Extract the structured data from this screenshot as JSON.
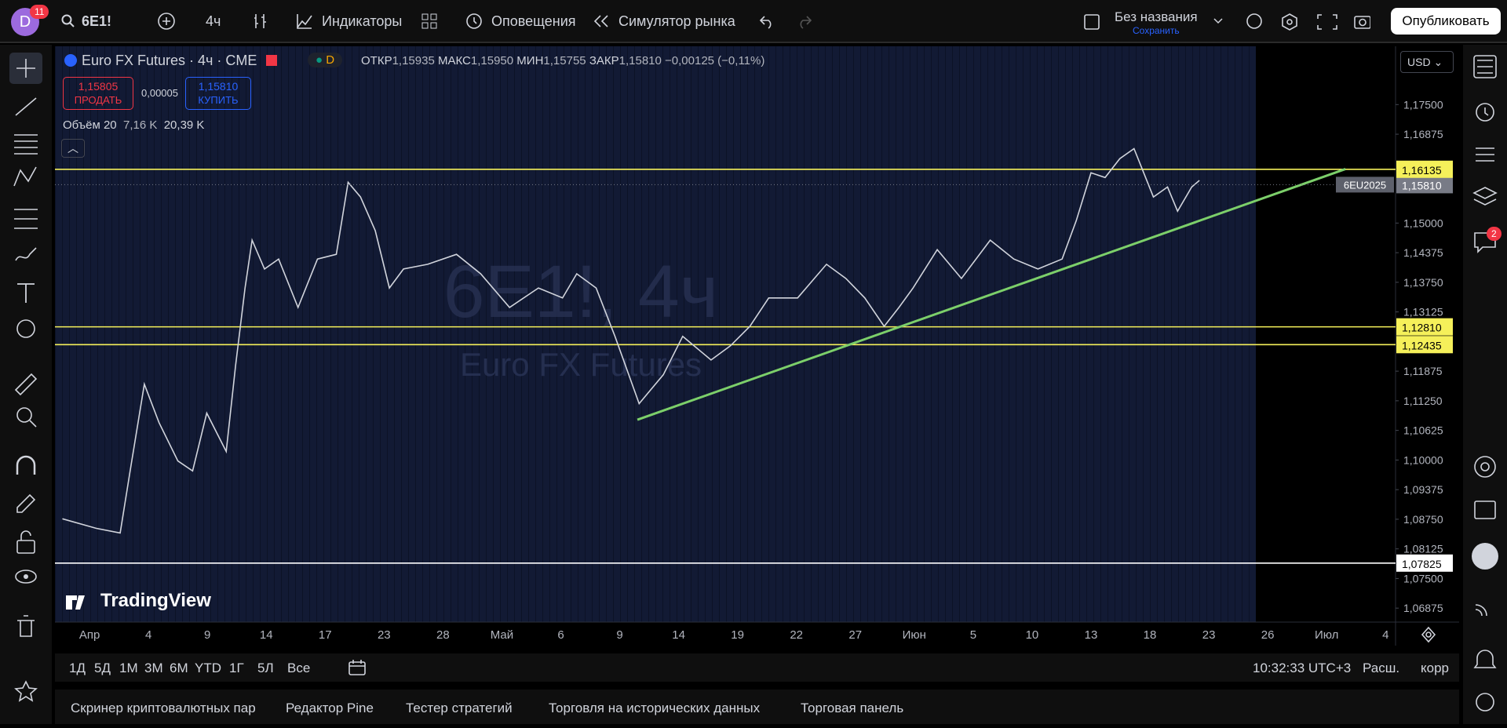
{
  "topbar": {
    "avatar": "D",
    "avatar_badge": "11",
    "symbol": "6E1!",
    "interval": "4ч",
    "indicators": "Индикаторы",
    "alerts": "Оповещения",
    "replay": "Симулятор рынка",
    "layout_name": "Без названия",
    "save": "Сохранить",
    "publish": "Опубликовать"
  },
  "legend": {
    "title": "Euro FX Futures · 4ч · CME",
    "flag": "D",
    "open_label": "ОТКР",
    "open": "1,15935",
    "high_label": "МАКС",
    "high": "1,15950",
    "low_label": "МИН",
    "low": "1,15755",
    "close_label": "ЗАКР",
    "close": "1,15810",
    "change": "−0,00125 (−0,11%)",
    "sell_price": "1,15805",
    "sell": "ПРОДАТЬ",
    "spread": "0,00005",
    "buy_price": "1,15810",
    "buy": "КУПИТЬ",
    "volume_label": "Объём 20",
    "volume_1": "7,16 K",
    "volume_2": "20,39 K"
  },
  "watermark": {
    "symbol": "6E1!, 4ч",
    "name": "Euro FX Futures"
  },
  "logo": "TradingView",
  "currency": "USD",
  "right_badge": "2",
  "chart_data": {
    "type": "line",
    "categories": [
      "Апр",
      "4",
      "9",
      "14",
      "17",
      "23",
      "28",
      "Май",
      "6",
      "9",
      "14",
      "19",
      "22",
      "27",
      "Июн",
      "5",
      "10",
      "13",
      "18",
      "23",
      "26",
      "Июл",
      "4"
    ],
    "xlim": [
      -0.587,
      22.17
    ],
    "ylim": [
      1.0658,
      1.1873
    ],
    "yticks": [
      {
        "value": 1.175,
        "label": "1,17500"
      },
      {
        "value": 1.16875,
        "label": "1,16875"
      },
      {
        "value": 1.15,
        "label": "1,15000"
      },
      {
        "value": 1.14375,
        "label": "1,14375"
      },
      {
        "value": 1.1375,
        "label": "1,13750"
      },
      {
        "value": 1.13125,
        "label": "1,13125"
      },
      {
        "value": 1.11875,
        "label": "1,11875"
      },
      {
        "value": 1.1125,
        "label": "1,11250"
      },
      {
        "value": 1.10625,
        "label": "1,10625"
      },
      {
        "value": 1.1,
        "label": "1,10000"
      },
      {
        "value": 1.09375,
        "label": "1,09375"
      },
      {
        "value": 1.0875,
        "label": "1,08750"
      },
      {
        "value": 1.08125,
        "label": "1,08125"
      },
      {
        "value": 1.075,
        "label": "1,07500"
      },
      {
        "value": 1.06875,
        "label": "1,06875"
      }
    ],
    "grid": false,
    "series": [
      {
        "name": "6E1!",
        "color": "#d1d4dc",
        "x": [
          -0.46,
          0.11,
          0.52,
          0.69,
          0.93,
          1.18,
          1.5,
          1.75,
          1.99,
          2.32,
          2.48,
          2.64,
          2.76,
          2.97,
          3.21,
          3.54,
          3.87,
          4.19,
          4.39,
          4.6,
          4.85,
          5.09,
          5.33,
          5.74,
          6.23,
          6.64,
          7.13,
          7.62,
          8.03,
          8.27,
          8.6,
          8.92,
          9.33,
          9.74,
          10.07,
          10.55,
          10.88,
          11.21,
          11.53,
          12.02,
          12.51,
          12.84,
          13.16,
          13.49,
          13.74,
          13.98,
          14.39,
          14.8,
          15.29,
          15.69,
          16.1,
          16.51,
          16.75,
          17.0,
          17.24,
          17.49,
          17.73,
          18.06,
          18.3,
          18.47,
          18.71,
          18.84
        ],
        "values": [
          1.0876,
          1.0856,
          1.0846,
          1.0977,
          1.116,
          1.1079,
          1.0998,
          1.0977,
          1.1099,
          1.1018,
          1.12,
          1.1363,
          1.1464,
          1.1403,
          1.1424,
          1.1322,
          1.1424,
          1.1434,
          1.1586,
          1.1555,
          1.1484,
          1.1363,
          1.1403,
          1.1413,
          1.1434,
          1.1393,
          1.1322,
          1.1363,
          1.1342,
          1.1393,
          1.1363,
          1.1261,
          1.1119,
          1.118,
          1.1261,
          1.1211,
          1.1241,
          1.1282,
          1.1342,
          1.1342,
          1.1413,
          1.1383,
          1.1342,
          1.1282,
          1.1322,
          1.1363,
          1.1444,
          1.1383,
          1.1464,
          1.1424,
          1.1403,
          1.1424,
          1.1505,
          1.1606,
          1.1596,
          1.1636,
          1.1657,
          1.1555,
          1.1576,
          1.1525,
          1.1576,
          1.159
        ]
      }
    ],
    "trendline": {
      "color": "#7ccf6a",
      "x": [
        9.3,
        21.32
      ],
      "values": [
        1.1085,
        1.1614
      ]
    },
    "levels": [
      {
        "value": 1.16135,
        "label": "1,16135",
        "color": "#f5f05a"
      },
      {
        "value": 1.1281,
        "label": "1,12810",
        "color": "#f5f05a"
      },
      {
        "value": 1.12435,
        "label": "1,12435",
        "color": "#f5f05a"
      },
      {
        "value": 1.07825,
        "label": "1,07825",
        "color": "#ffffff"
      }
    ],
    "last": {
      "value": 1.1581,
      "label": "1,15810",
      "symbol": "6EU2025"
    }
  },
  "bottombar": {
    "ranges": [
      "1Д",
      "5Д",
      "1М",
      "3М",
      "6М",
      "YTD",
      "1Г",
      "5Л",
      "Все"
    ],
    "clock": "10:32:33 UTC+3",
    "ext": "Расш.",
    "adj": "корр"
  },
  "tabs": [
    "Скринер криптовалютных пар",
    "Редактор Pine",
    "Тестер стратегий",
    "Торговля на исторических данных",
    "Торговая панель"
  ]
}
